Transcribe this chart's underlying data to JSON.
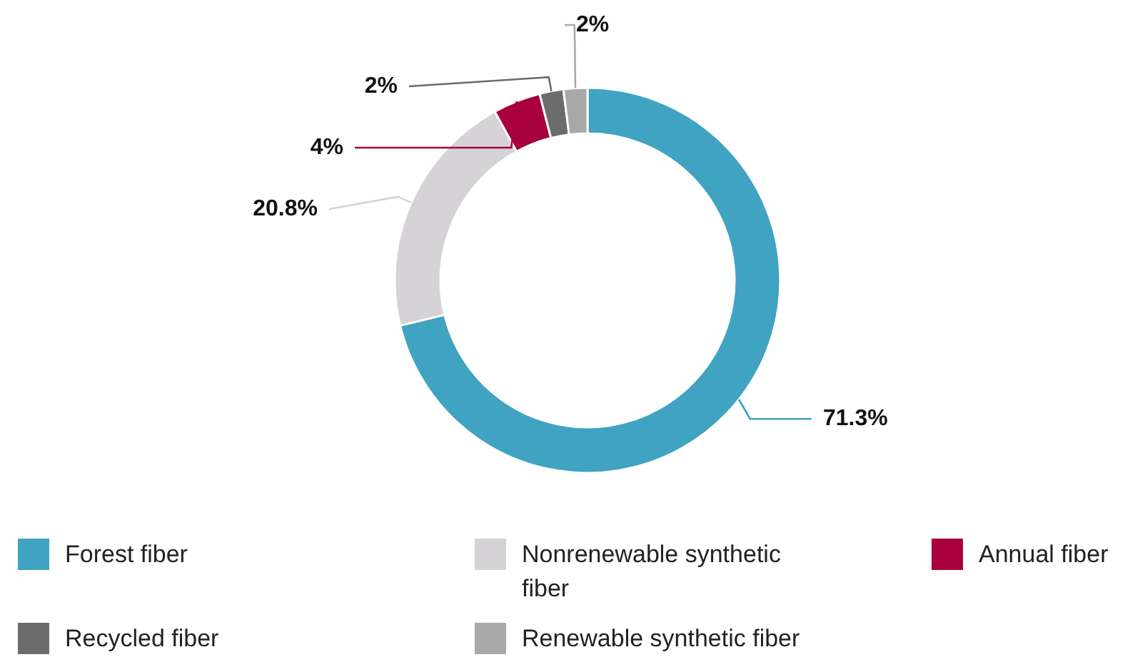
{
  "chart_data": {
    "type": "donut",
    "categories": [
      "Forest fiber",
      "Nonrenewable synthetic fiber",
      "Annual fiber",
      "Recycled fiber",
      "Renewable synthetic fiber"
    ],
    "values": [
      71.3,
      20.8,
      4,
      2,
      2
    ],
    "colors": [
      "#3fa3c1",
      "#d5d3d6",
      "#a8003f",
      "#6b6b6b",
      "#a8a8a8"
    ],
    "value_labels": [
      "71.3%",
      "20.8%",
      "4%",
      "2%",
      "2%"
    ],
    "legend": "bottom"
  }
}
